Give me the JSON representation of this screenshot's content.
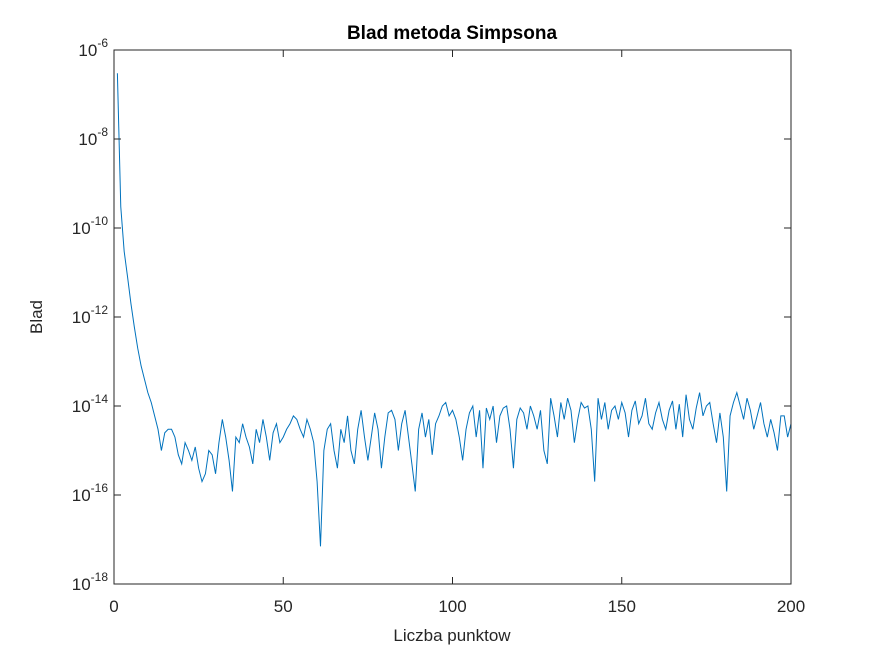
{
  "chart_data": {
    "type": "line",
    "title": "Blad metoda Simpsona",
    "xlabel": "Liczba punktow",
    "ylabel": "Blad",
    "color": "#0072BD",
    "yscale": "log",
    "grid": false,
    "xlim": [
      0,
      200
    ],
    "xticks": [
      0,
      50,
      100,
      150,
      200
    ],
    "ylim": [
      1e-18,
      1e-06
    ],
    "yticks": [
      {
        "value": 1e-18,
        "label": "10^-18"
      },
      {
        "value": 1e-16,
        "label": "10^-16"
      },
      {
        "value": 1e-14,
        "label": "10^-14"
      },
      {
        "value": 1e-12,
        "label": "10^-12"
      },
      {
        "value": 1e-10,
        "label": "10^-10"
      },
      {
        "value": 1e-08,
        "label": "10^-8"
      },
      {
        "value": 1e-06,
        "label": "10^-6"
      }
    ],
    "x": [
      1,
      2,
      3,
      4,
      5,
      6,
      7,
      8,
      9,
      10,
      11,
      12,
      13,
      14,
      15,
      16,
      17,
      18,
      19,
      20,
      21,
      22,
      23,
      24,
      25,
      26,
      27,
      28,
      29,
      30,
      31,
      32,
      33,
      34,
      35,
      36,
      37,
      38,
      39,
      40,
      41,
      42,
      43,
      44,
      45,
      46,
      47,
      48,
      49,
      50,
      51,
      52,
      53,
      54,
      55,
      56,
      57,
      58,
      59,
      60,
      61,
      62,
      63,
      64,
      65,
      66,
      67,
      68,
      69,
      70,
      71,
      72,
      73,
      74,
      75,
      76,
      77,
      78,
      79,
      80,
      81,
      82,
      83,
      84,
      85,
      86,
      87,
      88,
      89,
      90,
      91,
      92,
      93,
      94,
      95,
      96,
      97,
      98,
      99,
      100,
      101,
      102,
      103,
      104,
      105,
      106,
      107,
      108,
      109,
      110,
      111,
      112,
      113,
      114,
      115,
      116,
      117,
      118,
      119,
      120,
      121,
      122,
      123,
      124,
      125,
      126,
      127,
      128,
      129,
      130,
      131,
      132,
      133,
      134,
      135,
      136,
      137,
      138,
      139,
      140,
      141,
      142,
      143,
      144,
      145,
      146,
      147,
      148,
      149,
      150,
      151,
      152,
      153,
      154,
      155,
      156,
      157,
      158,
      159,
      160,
      161,
      162,
      163,
      164,
      165,
      166,
      167,
      168,
      169,
      170,
      171,
      172,
      173,
      174,
      175,
      176,
      177,
      178,
      179,
      180,
      181,
      182,
      183,
      184,
      185,
      186,
      187,
      188,
      189,
      190,
      191,
      192,
      193,
      194,
      195,
      196,
      197,
      198,
      199,
      200
    ],
    "values": [
      3e-07,
      3e-10,
      3e-11,
      8e-12,
      2e-12,
      6e-13,
      2e-13,
      8e-14,
      4e-14,
      2e-14,
      1.2e-14,
      6e-15,
      3e-15,
      1e-15,
      2.5e-15,
      3e-15,
      3e-15,
      2e-15,
      8e-16,
      5e-16,
      1.5e-15,
      1e-15,
      6e-16,
      1.2e-15,
      4e-16,
      2e-16,
      3e-16,
      1e-15,
      8e-16,
      3e-16,
      1.5e-15,
      5e-15,
      2e-15,
      6e-16,
      1.2e-16,
      2e-15,
      1.5e-15,
      4e-15,
      2e-15,
      1.2e-15,
      5e-16,
      3e-15,
      1.5e-15,
      5e-15,
      2e-15,
      6e-16,
      2.5e-15,
      4e-15,
      1.5e-15,
      2e-15,
      3e-15,
      4e-15,
      6e-15,
      5e-15,
      3e-15,
      2e-15,
      5e-15,
      3e-15,
      1.5e-15,
      2e-16,
      7e-18,
      1e-15,
      3e-15,
      4e-15,
      1e-15,
      4e-16,
      3e-15,
      1.5e-15,
      6e-15,
      1e-15,
      5e-16,
      3e-15,
      8e-15,
      2e-15,
      6e-16,
      2e-15,
      7e-15,
      3e-15,
      4e-16,
      2e-15,
      7e-15,
      8e-15,
      5e-15,
      1e-15,
      4e-15,
      8e-15,
      2e-15,
      5e-16,
      1.2e-16,
      3e-15,
      7e-15,
      2e-15,
      5e-15,
      8e-16,
      4e-15,
      6e-15,
      1e-14,
      1.2e-14,
      6e-15,
      8e-15,
      5e-15,
      2e-15,
      6e-16,
      3e-15,
      7e-15,
      1e-14,
      2e-15,
      8e-15,
      4e-16,
      9e-15,
      5e-15,
      1e-14,
      1.5e-15,
      6e-15,
      9e-15,
      1e-14,
      3e-15,
      4e-16,
      5e-15,
      9e-15,
      7e-15,
      3e-15,
      1e-14,
      6e-15,
      3e-15,
      8e-15,
      1e-15,
      5e-16,
      1.5e-14,
      6e-15,
      2e-15,
      1.2e-14,
      5e-15,
      1.5e-14,
      8e-15,
      1.5e-15,
      5e-15,
      1.2e-14,
      9e-15,
      1e-14,
      3e-15,
      2e-16,
      1.5e-14,
      5e-15,
      1.2e-14,
      3e-15,
      8e-15,
      1e-14,
      5e-15,
      1.2e-14,
      7e-15,
      2e-15,
      8e-15,
      1.3e-14,
      4e-15,
      6e-15,
      1.5e-14,
      4e-15,
      3e-15,
      7e-15,
      1.2e-14,
      5e-15,
      3e-15,
      8e-15,
      1.3e-14,
      3e-15,
      1.1e-14,
      2e-15,
      1.8e-14,
      5e-15,
      3e-15,
      9e-15,
      2e-14,
      6e-15,
      1e-14,
      1.2e-14,
      4e-15,
      1.5e-15,
      7e-15,
      2e-15,
      1.2e-16,
      6e-15,
      1.2e-14,
      2e-14,
      1e-14,
      5e-15,
      1.5e-14,
      8e-15,
      3e-15,
      6e-15,
      1.2e-14,
      4e-15,
      2e-15,
      5e-15,
      2.5e-15,
      1e-15,
      6e-15,
      6e-15,
      2e-15,
      4e-15
    ]
  }
}
